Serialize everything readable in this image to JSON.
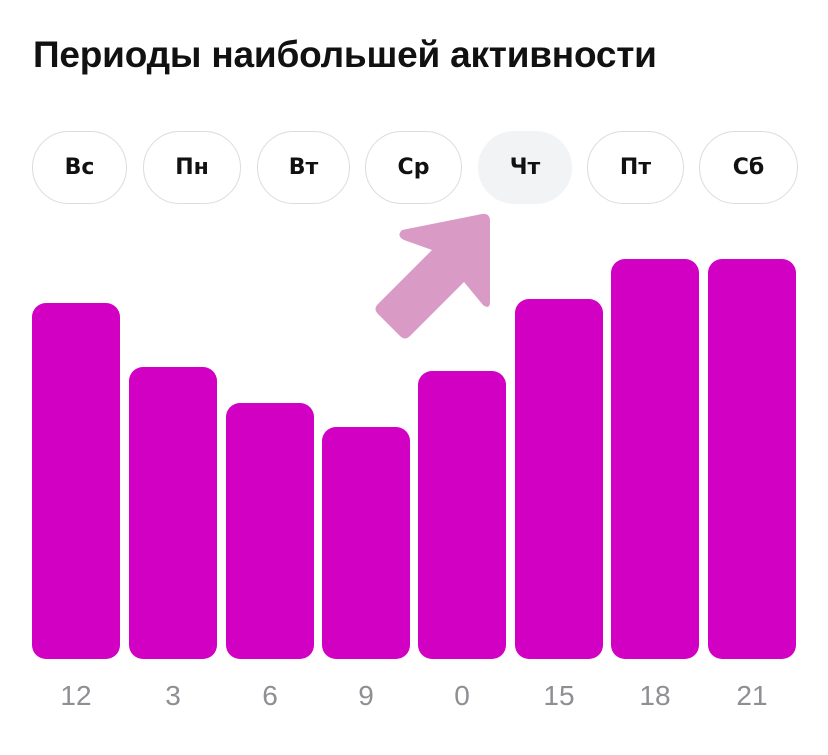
{
  "header": {
    "title": "Периоды наибольшей активности"
  },
  "days": [
    {
      "label": "Вс",
      "selected": false
    },
    {
      "label": "Пн",
      "selected": false
    },
    {
      "label": "Вт",
      "selected": false
    },
    {
      "label": "Ср",
      "selected": false
    },
    {
      "label": "Чт",
      "selected": true
    },
    {
      "label": "Пт",
      "selected": false
    },
    {
      "label": "Сб",
      "selected": false
    }
  ],
  "annotation": {
    "icon": "arrow-up-right-icon",
    "color": "#d99bc6",
    "points_to": "Чт"
  },
  "colors": {
    "bar": "#d100c3",
    "selected_day_bg": "#f2f3f5",
    "axis_label": "#8e8e93"
  },
  "chart_data": {
    "type": "bar",
    "title": "Периоды наибольшей активности",
    "categories": [
      "12",
      "3",
      "6",
      "9",
      "0",
      "15",
      "18",
      "21"
    ],
    "values": [
      89,
      73,
      64,
      58,
      72,
      90,
      100,
      100
    ],
    "xlabel": "",
    "ylabel": "",
    "ylim": [
      0,
      100
    ],
    "grid": false,
    "legend": null,
    "selected_day": "Чт"
  }
}
